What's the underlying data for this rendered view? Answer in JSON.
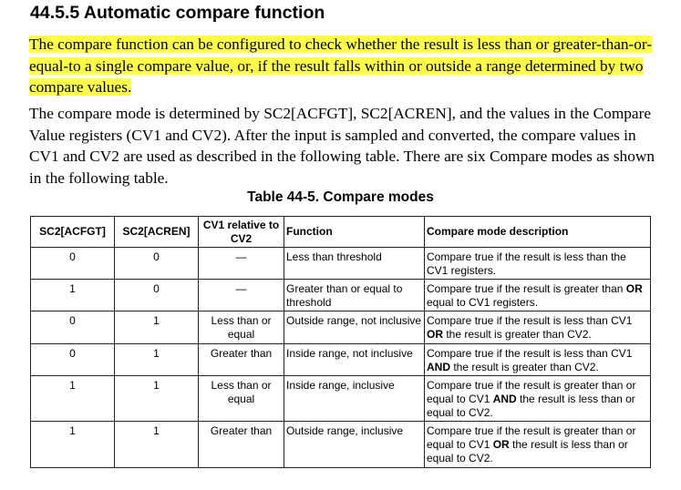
{
  "heading": "44.5.5 Automatic compare function",
  "para1": "The compare function can be configured to check whether the result is less than or greater-than-or-equal-to a single compare value, or, if the result falls within or outside a range determined by two compare values.",
  "para2": "The compare mode is determined by SC2[ACFGT], SC2[ACREN], and the values in the Compare Value registers (CV1 and CV2). After the input is sampled and converted, the compare values in CV1 and CV2 are used as described in the following table. There are six Compare modes as shown in the following table.",
  "highlight_color": "#ffff4a",
  "table": {
    "caption": "Table 44-5.  Compare modes",
    "headers": [
      "SC2[ACFGT]",
      "SC2[ACREN]",
      "CV1 relative to CV2",
      "Function",
      "Compare mode description"
    ],
    "rows": [
      {
        "acfgt": "0",
        "acren": "0",
        "rel": "—",
        "func": "Less than threshold",
        "desc": [
          {
            "t": "Compare true if the result is less than the CV1 registers."
          }
        ]
      },
      {
        "acfgt": "1",
        "acren": "0",
        "rel": "—",
        "func": "Greater than or equal to threshold",
        "desc": [
          {
            "t": "Compare true if the result is greater than "
          },
          {
            "t": "OR",
            "b": true
          },
          {
            "t": " equal to CV1 registers."
          }
        ]
      },
      {
        "acfgt": "0",
        "acren": "1",
        "rel": "Less than or equal",
        "func": "Outside range, not inclusive",
        "desc": [
          {
            "t": "Compare true if the result is less than CV1 "
          },
          {
            "t": "OR",
            "b": true
          },
          {
            "t": " the result is greater than CV2."
          }
        ]
      },
      {
        "acfgt": "0",
        "acren": "1",
        "rel": "Greater than",
        "func": "Inside range, not inclusive",
        "desc": [
          {
            "t": "Compare true if the result is less than CV1 "
          },
          {
            "t": "AND",
            "b": true
          },
          {
            "t": " the result is greater than CV2."
          }
        ]
      },
      {
        "acfgt": "1",
        "acren": "1",
        "rel": "Less than or equal",
        "func": "Inside range, inclusive",
        "desc": [
          {
            "t": "Compare true if the result is greater than or equal to CV1 "
          },
          {
            "t": "AND",
            "b": true
          },
          {
            "t": " the result is less than or equal to CV2."
          }
        ]
      },
      {
        "acfgt": "1",
        "acren": "1",
        "rel": "Greater than",
        "func": "Outside range, inclusive",
        "desc": [
          {
            "t": "Compare true if the result is greater than or equal to CV1 "
          },
          {
            "t": "OR",
            "b": true
          },
          {
            "t": " the result is less than or equal to CV2."
          }
        ]
      }
    ]
  }
}
